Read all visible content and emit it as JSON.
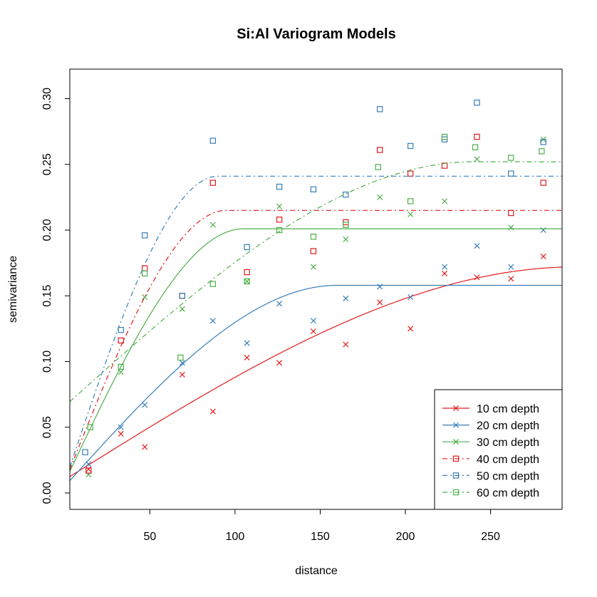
{
  "chart_data": {
    "type": "scatter",
    "title": "Si:Al Variogram Models",
    "xlabel": "distance",
    "ylabel": "semivariance",
    "xlim": [
      3,
      292
    ],
    "ylim": [
      -0.0125,
      0.3225
    ],
    "xticks": [
      50,
      100,
      150,
      200,
      250
    ],
    "yticks": [
      0.0,
      0.05,
      0.1,
      0.15,
      0.2,
      0.25,
      0.3
    ],
    "ytick_labels": [
      "0.00",
      "0.05",
      "0.10",
      "0.15",
      "0.20",
      "0.25",
      "0.30"
    ],
    "grid": false,
    "legend_position": "bottom-right",
    "series": [
      {
        "name": "10 cm depth",
        "color": "#E41A1C",
        "marker": "x",
        "line": "solid",
        "points": [
          [
            14,
            0.018
          ],
          [
            33,
            0.045
          ],
          [
            47,
            0.035
          ],
          [
            69,
            0.09
          ],
          [
            87,
            0.062
          ],
          [
            107,
            0.103
          ],
          [
            126,
            0.099
          ],
          [
            146,
            0.123
          ],
          [
            165,
            0.113
          ],
          [
            185,
            0.145
          ],
          [
            203,
            0.125
          ],
          [
            223,
            0.167
          ],
          [
            242,
            0.164
          ],
          [
            262,
            0.163
          ],
          [
            281,
            0.18
          ]
        ],
        "model": {
          "nugget": 0.01,
          "sill": 0.172,
          "range": 300
        }
      },
      {
        "name": "20 cm depth",
        "color": "#377EB8",
        "marker": "x",
        "line": "solid",
        "points": [
          [
            14,
            0.022
          ],
          [
            33,
            0.05
          ],
          [
            47,
            0.067
          ],
          [
            69,
            0.099
          ],
          [
            87,
            0.131
          ],
          [
            107,
            0.114
          ],
          [
            126,
            0.144
          ],
          [
            146,
            0.131
          ],
          [
            165,
            0.148
          ],
          [
            185,
            0.157
          ],
          [
            203,
            0.149
          ],
          [
            223,
            0.172
          ],
          [
            242,
            0.188
          ],
          [
            262,
            0.172
          ],
          [
            281,
            0.2
          ]
        ],
        "model": {
          "nugget": 0.005,
          "sill": 0.158,
          "range": 160
        }
      },
      {
        "name": "30 cm depth",
        "color": "#4DAF4A",
        "marker": "x",
        "line": "solid",
        "points": [
          [
            14,
            0.014
          ],
          [
            33,
            0.092
          ],
          [
            47,
            0.149
          ],
          [
            69,
            0.14
          ],
          [
            87,
            0.204
          ],
          [
            107,
            0.161
          ],
          [
            126,
            0.218
          ],
          [
            146,
            0.172
          ],
          [
            165,
            0.193
          ],
          [
            185,
            0.225
          ],
          [
            203,
            0.212
          ],
          [
            223,
            0.222
          ],
          [
            242,
            0.254
          ],
          [
            262,
            0.202
          ],
          [
            281,
            0.269
          ]
        ],
        "model": {
          "nugget": 0.008,
          "sill": 0.201,
          "range": 105
        }
      },
      {
        "name": "40 cm depth",
        "color": "#E41A1C",
        "marker": "square",
        "line": "dashdot",
        "points": [
          [
            14,
            0.017
          ],
          [
            33,
            0.116
          ],
          [
            47,
            0.171
          ],
          [
            69,
            0.15
          ],
          [
            87,
            0.236
          ],
          [
            107,
            0.168
          ],
          [
            126,
            0.208
          ],
          [
            146,
            0.184
          ],
          [
            165,
            0.206
          ],
          [
            185,
            0.261
          ],
          [
            203,
            0.243
          ],
          [
            223,
            0.249
          ],
          [
            242,
            0.271
          ],
          [
            262,
            0.213
          ],
          [
            281,
            0.236
          ]
        ],
        "model": {
          "nugget": 0.008,
          "sill": 0.215,
          "range": 95
        }
      },
      {
        "name": "50 cm depth",
        "color": "#377EB8",
        "marker": "square",
        "line": "dashdot",
        "points": [
          [
            12,
            0.031
          ],
          [
            33,
            0.124
          ],
          [
            47,
            0.196
          ],
          [
            69,
            0.15
          ],
          [
            87,
            0.268
          ],
          [
            107,
            0.187
          ],
          [
            126,
            0.233
          ],
          [
            146,
            0.231
          ],
          [
            165,
            0.227
          ],
          [
            185,
            0.292
          ],
          [
            203,
            0.264
          ],
          [
            223,
            0.269
          ],
          [
            242,
            0.297
          ],
          [
            262,
            0.243
          ],
          [
            281,
            0.267
          ]
        ],
        "model": {
          "nugget": 0.008,
          "sill": 0.241,
          "range": 90
        }
      },
      {
        "name": "60 cm depth",
        "color": "#4DAF4A",
        "marker": "square",
        "line": "dashdot",
        "points": [
          [
            15,
            0.05
          ],
          [
            33,
            0.096
          ],
          [
            47,
            0.167
          ],
          [
            68,
            0.103
          ],
          [
            87,
            0.159
          ],
          [
            107,
            0.161
          ],
          [
            126,
            0.2
          ],
          [
            146,
            0.195
          ],
          [
            165,
            0.204
          ],
          [
            184,
            0.248
          ],
          [
            203,
            0.222
          ],
          [
            223,
            0.271
          ],
          [
            241,
            0.263
          ],
          [
            262,
            0.255
          ],
          [
            280,
            0.26
          ]
        ],
        "model": {
          "nugget": 0.066,
          "sill": 0.252,
          "range": 240
        }
      }
    ]
  }
}
